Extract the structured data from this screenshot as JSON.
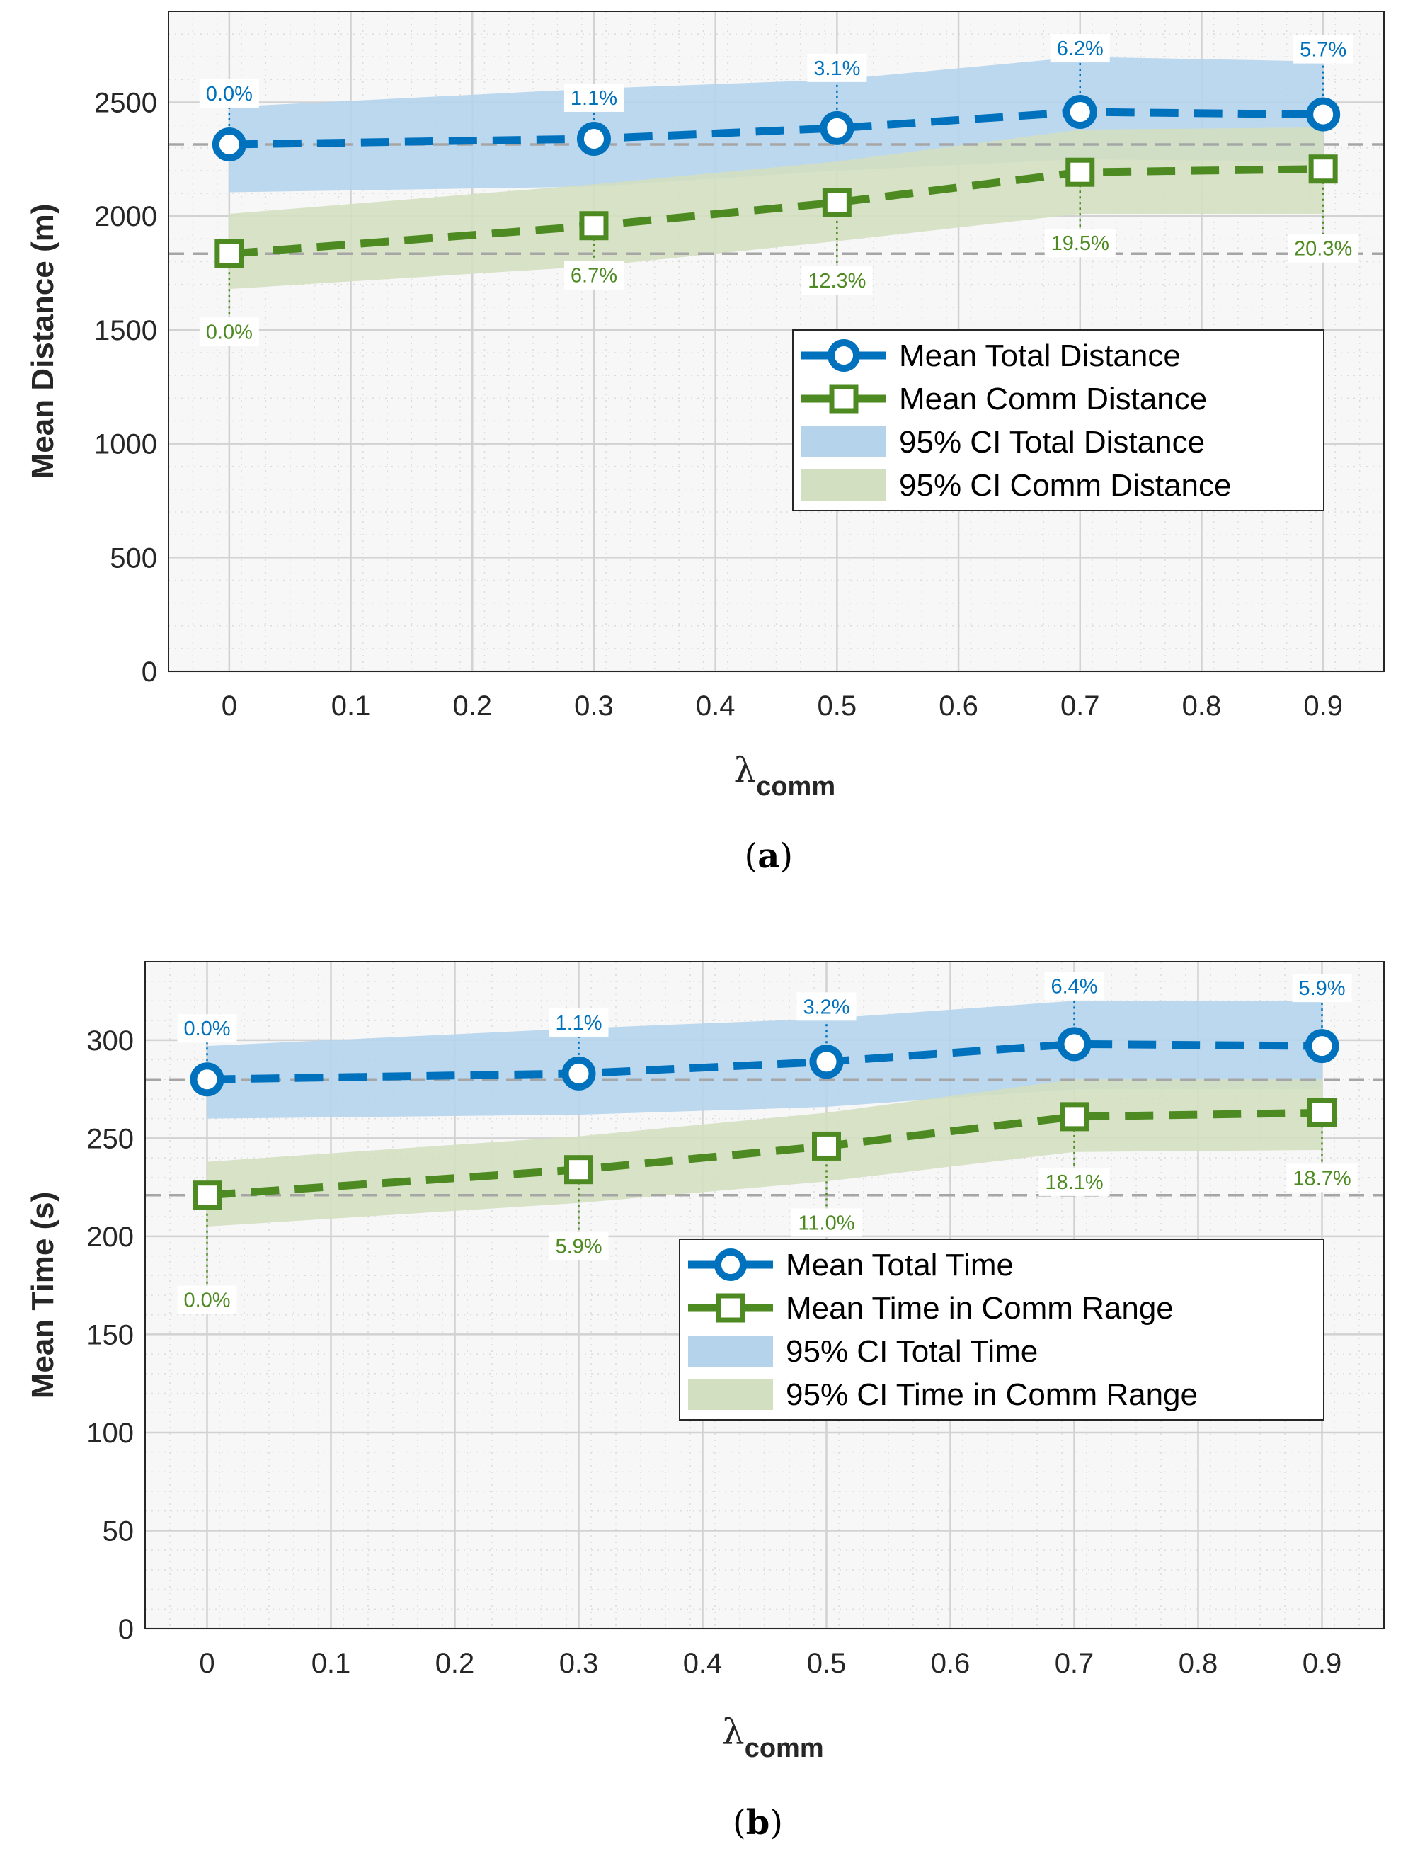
{
  "chart_data": [
    {
      "type": "line",
      "panel_label": "a",
      "xlabel_symbol": "λ",
      "xlabel_subscript": "comm",
      "ylabel": "Mean Distance (m)",
      "xlim": [
        -0.05,
        0.95
      ],
      "ylim": [
        0,
        2900
      ],
      "xticks": [
        0,
        0.1,
        0.2,
        0.3,
        0.4,
        0.5,
        0.6,
        0.7,
        0.8,
        0.9
      ],
      "xtick_labels": [
        "0",
        "0.1",
        "0.2",
        "0.3",
        "0.4",
        "0.5",
        "0.6",
        "0.7",
        "0.8",
        "0.9"
      ],
      "yticks": [
        0,
        500,
        1000,
        1500,
        2000,
        2500
      ],
      "ytick_labels": [
        "0",
        "500",
        "1000",
        "1500",
        "2000",
        "2500"
      ],
      "x": [
        0,
        0.3,
        0.5,
        0.7,
        0.9
      ],
      "reference_lines": [
        2315,
        1835
      ],
      "series": [
        {
          "name": "Mean Total Distance",
          "color": "#0072BD",
          "marker": "circle",
          "values": [
            2315,
            2340,
            2387,
            2458,
            2447
          ],
          "ci_low": [
            2105,
            2130,
            2200,
            2250,
            2240
          ],
          "ci_high": [
            2480,
            2560,
            2600,
            2700,
            2680
          ],
          "ci_name": "95% CI Total Distance",
          "ci_color": "#B5D4EC",
          "labels": [
            "0.0%",
            "1.1%",
            "3.1%",
            "6.2%",
            "5.7%"
          ]
        },
        {
          "name": "Mean Comm Distance",
          "color": "#4D8B22",
          "marker": "square",
          "values": [
            1835,
            1958,
            2060,
            2193,
            2207
          ],
          "ci_low": [
            1680,
            1780,
            1890,
            2010,
            2010
          ],
          "ci_high": [
            2010,
            2140,
            2240,
            2380,
            2390
          ],
          "ci_name": "95% CI Comm Distance",
          "ci_color": "#D3DFC1",
          "labels": [
            "0.0%",
            "6.7%",
            "12.3%",
            "19.5%",
            "20.3%"
          ]
        }
      ]
    },
    {
      "type": "line",
      "panel_label": "b",
      "xlabel_symbol": "λ",
      "xlabel_subscript": "comm",
      "ylabel": "Mean Time (s)",
      "xlim": [
        -0.05,
        0.95
      ],
      "ylim": [
        0,
        340
      ],
      "xticks": [
        0,
        0.1,
        0.2,
        0.3,
        0.4,
        0.5,
        0.6,
        0.7,
        0.8,
        0.9
      ],
      "xtick_labels": [
        "0",
        "0.1",
        "0.2",
        "0.3",
        "0.4",
        "0.5",
        "0.6",
        "0.7",
        "0.8",
        "0.9"
      ],
      "yticks": [
        0,
        50,
        100,
        150,
        200,
        250,
        300
      ],
      "ytick_labels": [
        "0",
        "50",
        "100",
        "150",
        "200",
        "250",
        "300"
      ],
      "x": [
        0,
        0.3,
        0.5,
        0.7,
        0.9
      ],
      "reference_lines": [
        280,
        221
      ],
      "series": [
        {
          "name": "Mean Total Time",
          "color": "#0072BD",
          "marker": "circle",
          "values": [
            280,
            283,
            289,
            298,
            297
          ],
          "ci_low": [
            260,
            262,
            266,
            275,
            275
          ],
          "ci_high": [
            297,
            306,
            311,
            320,
            320
          ],
          "ci_name": "95% CI Total Time",
          "ci_color": "#B5D4EC",
          "labels": [
            "0.0%",
            "1.1%",
            "3.2%",
            "6.4%",
            "5.9%"
          ]
        },
        {
          "name": "Mean Time in Comm Range",
          "color": "#4D8B22",
          "marker": "square",
          "values": [
            221,
            234,
            246,
            261,
            263
          ],
          "ci_low": [
            205,
            217,
            228,
            243,
            244
          ],
          "ci_high": [
            238,
            251,
            263,
            280,
            280
          ],
          "ci_name": "95% CI Time in Comm Range",
          "ci_color": "#D3DFC1",
          "labels": [
            "0.0%",
            "5.9%",
            "11.0%",
            "18.1%",
            "18.7%"
          ]
        }
      ]
    }
  ]
}
